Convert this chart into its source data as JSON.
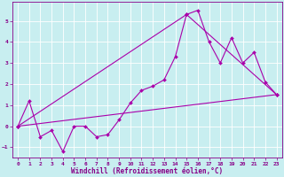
{
  "xlabel": "Windchill (Refroidissement éolien,°C)",
  "bg_color": "#c8eef0",
  "grid_color": "#ffffff",
  "line_color": "#aa00aa",
  "marker": "D",
  "markersize": 2,
  "linewidth": 0.8,
  "xlim": [
    -0.5,
    23.5
  ],
  "ylim": [
    -1.5,
    5.9
  ],
  "xticks": [
    0,
    1,
    2,
    3,
    4,
    5,
    6,
    7,
    8,
    9,
    10,
    11,
    12,
    13,
    14,
    15,
    16,
    17,
    18,
    19,
    20,
    21,
    22,
    23
  ],
  "yticks": [
    -1,
    0,
    1,
    2,
    3,
    4,
    5
  ],
  "line1_x": [
    0,
    1,
    2,
    3,
    4,
    5,
    6,
    7,
    8,
    9,
    10,
    11,
    12,
    13,
    14,
    15,
    16,
    17,
    18,
    19,
    20,
    21,
    22,
    23
  ],
  "line1_y": [
    0.0,
    1.2,
    -0.5,
    -0.2,
    -1.2,
    0.0,
    0.0,
    -0.5,
    -0.4,
    0.3,
    1.1,
    1.7,
    1.9,
    2.2,
    3.3,
    5.3,
    5.5,
    4.0,
    3.0,
    4.2,
    3.0,
    3.5,
    2.1,
    1.5
  ],
  "line2_x": [
    0,
    23
  ],
  "line2_y": [
    0.0,
    1.5
  ],
  "line3_x": [
    0,
    15,
    23
  ],
  "line3_y": [
    0.0,
    5.3,
    1.5
  ],
  "fig_bg_color": "#c8eef0",
  "tick_color": "#880088",
  "label_color": "#880088",
  "tick_fontsize": 4.5,
  "label_fontsize": 5.5,
  "spine_color": "#880088"
}
